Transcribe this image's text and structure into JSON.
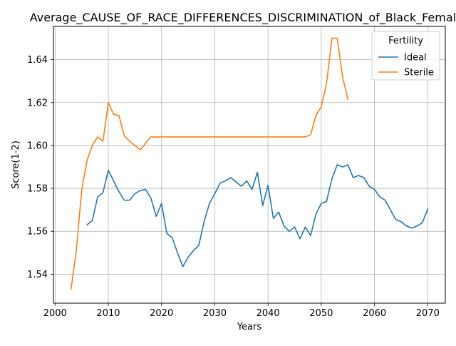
{
  "chart_data": {
    "type": "line",
    "title": "Average_CAUSE_OF_RACE_DIFFERENCES_DISCRIMINATION_of_Black_Females",
    "xlabel": "Years",
    "ylabel": "Score(1-2)",
    "xlim": [
      1999.7,
      2073.3
    ],
    "ylim": [
      1.5265,
      1.6555
    ],
    "xticks": [
      2000,
      2010,
      2020,
      2030,
      2040,
      2050,
      2060,
      2070
    ],
    "yticks": [
      1.54,
      1.56,
      1.58,
      1.6,
      1.62,
      1.64
    ],
    "ytick_labels": [
      "1.54",
      "1.56",
      "1.58",
      "1.60",
      "1.62",
      "1.64"
    ],
    "grid": true,
    "legend": {
      "title": "Fertility",
      "position": "top-right"
    },
    "series": [
      {
        "name": "Ideal",
        "color": "#1f77b4",
        "x": [
          2006,
          2007,
          2008,
          2009,
          2010,
          2011,
          2012,
          2013,
          2014,
          2015,
          2016,
          2017,
          2018,
          2019,
          2020,
          2021,
          2022,
          2023,
          2024,
          2025,
          2026,
          2027,
          2028,
          2029,
          2030,
          2031,
          2032,
          2033,
          2034,
          2035,
          2036,
          2037,
          2038,
          2039,
          2040,
          2041,
          2042,
          2043,
          2044,
          2045,
          2046,
          2047,
          2048,
          2049,
          2050,
          2051,
          2052,
          2053,
          2054,
          2055,
          2056,
          2057,
          2058,
          2059,
          2060,
          2061,
          2062,
          2063,
          2064,
          2065,
          2066,
          2067,
          2068,
          2069,
          2070
        ],
        "values": [
          1.563,
          1.565,
          1.576,
          1.578,
          1.5885,
          1.5835,
          1.5785,
          1.5745,
          1.5745,
          1.5775,
          1.579,
          1.5795,
          1.5755,
          1.567,
          1.573,
          1.559,
          1.557,
          1.55,
          1.5435,
          1.548,
          1.551,
          1.5535,
          1.5645,
          1.573,
          1.5775,
          1.5825,
          1.5835,
          1.585,
          1.583,
          1.581,
          1.5835,
          1.5795,
          1.5875,
          1.572,
          1.5815,
          1.566,
          1.569,
          1.5625,
          1.56,
          1.562,
          1.5565,
          1.562,
          1.558,
          1.568,
          1.573,
          1.574,
          1.5845,
          1.591,
          1.59,
          1.591,
          1.585,
          1.586,
          1.585,
          1.581,
          1.5795,
          1.576,
          1.5745,
          1.57,
          1.5655,
          1.5645,
          1.5625,
          1.5615,
          1.5625,
          1.564,
          1.5705
        ]
      },
      {
        "name": "Sterile",
        "color": "#ff7f0e",
        "x": [
          2003,
          2004,
          2005,
          2006,
          2007,
          2008,
          2009,
          2010,
          2011,
          2012,
          2013,
          2014,
          2015,
          2016,
          2017,
          2018,
          2019,
          2020,
          2021,
          2022,
          2023,
          2024,
          2025,
          2026,
          2027,
          2028,
          2029,
          2030,
          2031,
          2032,
          2033,
          2034,
          2035,
          2036,
          2037,
          2038,
          2039,
          2040,
          2041,
          2042,
          2043,
          2044,
          2045,
          2046,
          2047,
          2048,
          2049,
          2050,
          2051,
          2052,
          2053,
          2054,
          2055
        ],
        "values": [
          1.533,
          1.551,
          1.579,
          1.593,
          1.6,
          1.604,
          1.602,
          1.62,
          1.6145,
          1.614,
          1.6045,
          1.602,
          1.6,
          1.598,
          1.601,
          1.604,
          1.604,
          1.604,
          1.604,
          1.604,
          1.604,
          1.604,
          1.604,
          1.604,
          1.604,
          1.604,
          1.604,
          1.604,
          1.604,
          1.604,
          1.604,
          1.604,
          1.604,
          1.604,
          1.604,
          1.604,
          1.604,
          1.604,
          1.604,
          1.604,
          1.604,
          1.604,
          1.604,
          1.604,
          1.604,
          1.605,
          1.614,
          1.618,
          1.629,
          1.65,
          1.65,
          1.632,
          1.6215
        ]
      }
    ]
  }
}
